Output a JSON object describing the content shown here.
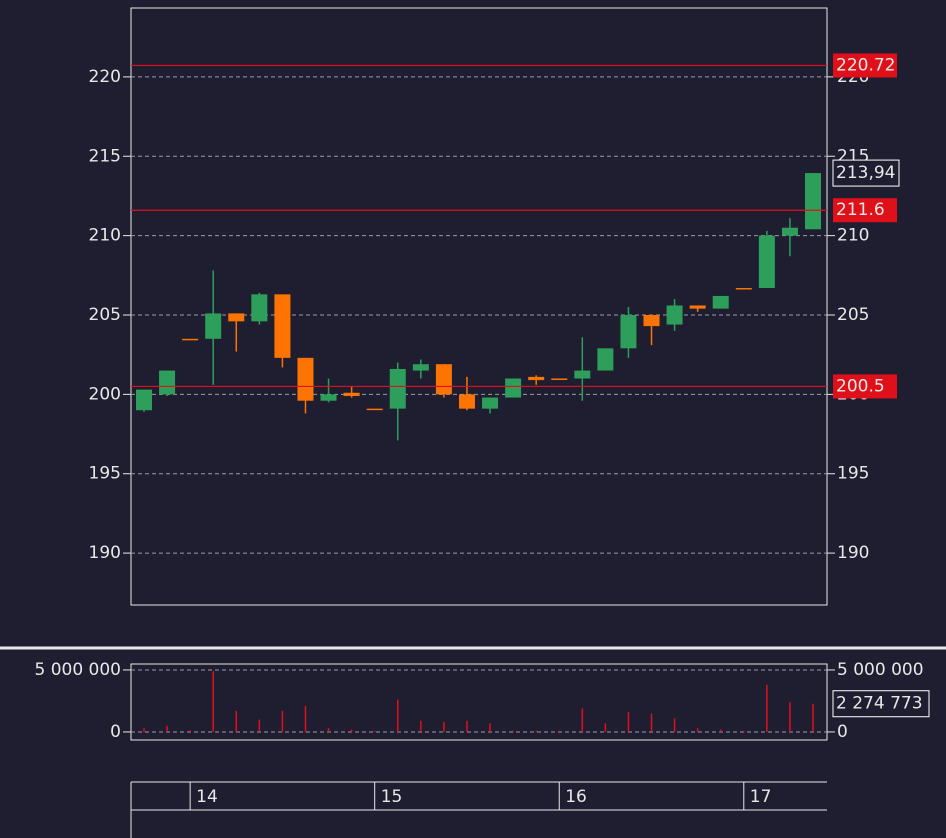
{
  "chart_data": [
    {
      "type": "candlestick",
      "categories": [
        null,
        null,
        "14",
        null,
        null,
        null,
        null,
        null,
        null,
        null,
        "15",
        null,
        null,
        null,
        null,
        null,
        null,
        null,
        "16",
        null,
        null,
        null,
        null,
        null,
        null,
        null,
        "17",
        null,
        null,
        null
      ],
      "open": [
        199.0,
        200.0,
        203.5,
        203.5,
        205.1,
        204.6,
        206.3,
        202.3,
        199.6,
        200.1,
        199.1,
        199.1,
        201.5,
        201.9,
        200.0,
        199.1,
        199.8,
        201.1,
        201.0,
        201.0,
        201.5,
        202.9,
        205.0,
        204.4,
        205.6,
        205.4,
        206.7,
        206.7,
        210.0,
        210.4
      ],
      "high": [
        200.3,
        201.5,
        203.5,
        207.8,
        205.1,
        206.4,
        206.3,
        202.3,
        201.0,
        200.5,
        199.1,
        202.0,
        202.2,
        201.9,
        201.1,
        199.8,
        201.0,
        201.2,
        201.0,
        203.6,
        202.9,
        205.5,
        205.0,
        206.0,
        205.6,
        206.2,
        206.7,
        210.3,
        211.1,
        213.94
      ],
      "low": [
        198.9,
        199.9,
        203.5,
        200.6,
        202.7,
        204.4,
        201.7,
        198.8,
        199.5,
        199.8,
        199.1,
        197.1,
        201.0,
        199.8,
        199.0,
        198.8,
        199.8,
        200.6,
        201.0,
        199.6,
        201.5,
        202.3,
        203.1,
        204.0,
        205.2,
        205.4,
        206.7,
        206.7,
        208.7,
        210.4
      ],
      "close": [
        200.3,
        201.5,
        203.5,
        205.1,
        204.6,
        206.3,
        202.3,
        199.6,
        200.0,
        199.9,
        199.1,
        201.6,
        201.9,
        200.0,
        199.1,
        199.8,
        201.0,
        200.9,
        201.0,
        201.5,
        202.9,
        205.0,
        204.3,
        205.6,
        205.4,
        206.2,
        206.7,
        210.0,
        210.5,
        213.94
      ],
      "up_color": "#2e9e5b",
      "down_color": "#ff7400",
      "ylim": [
        186.73,
        224.34
      ],
      "yticks": [
        190,
        195,
        200,
        205,
        210,
        215,
        220
      ],
      "grid": true,
      "lines": [
        {
          "value": 220.72,
          "color": "#e0101a"
        },
        {
          "value": 211.6,
          "color": "#e0101a"
        },
        {
          "value": 200.5,
          "color": "#e0101a"
        }
      ],
      "last_value": {
        "value": 213.94,
        "label": "213,94"
      }
    },
    {
      "type": "bar",
      "values": [
        300000,
        500000,
        150000,
        4900000,
        1700000,
        1000000,
        1700000,
        2100000,
        300000,
        200000,
        100000,
        2600000,
        900000,
        800000,
        900000,
        700000,
        100000,
        100000,
        100000,
        1900000,
        700000,
        1600000,
        1500000,
        1100000,
        300000,
        200000,
        100000,
        3800000,
        2400000,
        2274773
      ],
      "color": "#e0101a",
      "ylim": [
        -650000,
        5480000
      ],
      "yticks": [
        0,
        {
          "value": 5000000,
          "label": "5 000 000"
        }
      ],
      "grid": true,
      "last_value": {
        "value": 2274773,
        "label": "2 274 773"
      }
    }
  ]
}
